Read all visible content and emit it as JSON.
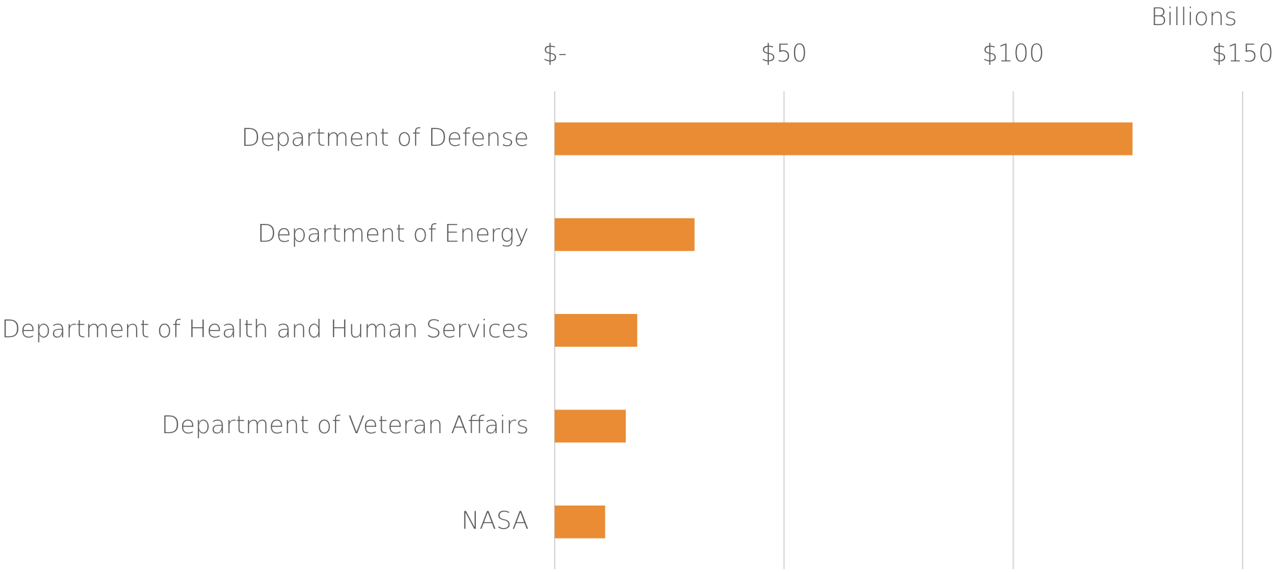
{
  "chart_data": {
    "type": "bar",
    "orientation": "horizontal",
    "x_label": "Billions",
    "categories": [
      "Department of Defense",
      "Department of Energy",
      "Department of Health and Human Services",
      "Department of Veteran Affairs",
      "NASA"
    ],
    "values": [
      126,
      30.5,
      18,
      15.5,
      11
    ],
    "color": "#e98c33",
    "xlim": [
      0,
      150
    ],
    "xticks": [
      {
        "value": 0,
        "label": "$-"
      },
      {
        "value": 50,
        "label": "$50"
      },
      {
        "value": 100,
        "label": "$100"
      },
      {
        "value": 150,
        "label": "$150"
      }
    ],
    "grid": true
  }
}
